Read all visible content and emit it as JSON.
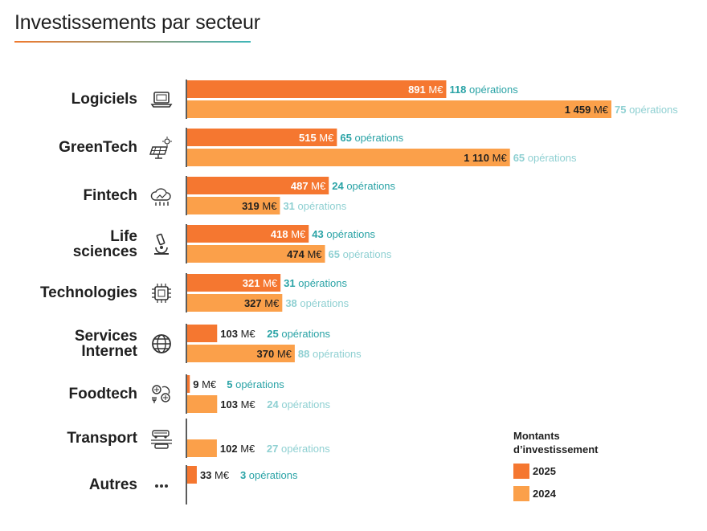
{
  "page_title": "Investissements par secteur",
  "legend": {
    "title": "Montants\nd’investissement",
    "items": [
      {
        "label": "2025",
        "color": "#f57730"
      },
      {
        "label": "2024",
        "color": "#fba04a"
      }
    ]
  },
  "colors": {
    "bar_2025": "#f57730",
    "bar_2024": "#fba04a",
    "ops_2025": "#2aa3a6",
    "ops_2024": "#8fd0d2",
    "axis": "#333333"
  },
  "chart_data": {
    "type": "bar",
    "orientation": "horizontal",
    "title": "Investissements par secteur",
    "unit": "M€",
    "categories": [
      "Logiciels",
      "GreenTech",
      "Fintech",
      "Life sciences",
      "Technologies",
      "Services Internet",
      "Foodtech",
      "Transport",
      "Autres"
    ],
    "category_display": [
      "Logiciels",
      "GreenTech",
      "Fintech",
      "Life\nsciences",
      "Technologies",
      "Services\nInternet",
      "Foodtech",
      "Transport",
      "Autres"
    ],
    "category_icons": [
      "laptop-icon",
      "solar-panel-icon",
      "cloud-finance-icon",
      "microscope-icon",
      "chip-icon",
      "globe-icon",
      "food-tech-icon",
      "vehicles-icon",
      "ellipsis-icon"
    ],
    "value_suffix": "M€",
    "ops_suffix": "opérations",
    "series": [
      {
        "name": "2025",
        "values": [
          891,
          515,
          487,
          418,
          321,
          103,
          9,
          null,
          33
        ],
        "value_labels": [
          "891",
          "515",
          "487",
          "418",
          "321",
          "103",
          "9",
          null,
          "33"
        ],
        "operations": [
          118,
          65,
          24,
          43,
          31,
          25,
          5,
          null,
          3
        ]
      },
      {
        "name": "2024",
        "values": [
          1459,
          1110,
          319,
          474,
          327,
          370,
          103,
          102,
          null
        ],
        "value_labels": [
          "1 459",
          "1 110",
          "319",
          "474",
          "327",
          "370",
          "103",
          "102",
          null
        ],
        "operations": [
          75,
          65,
          31,
          65,
          38,
          88,
          24,
          27,
          null
        ]
      }
    ],
    "xlim": [
      0,
      1459
    ]
  }
}
